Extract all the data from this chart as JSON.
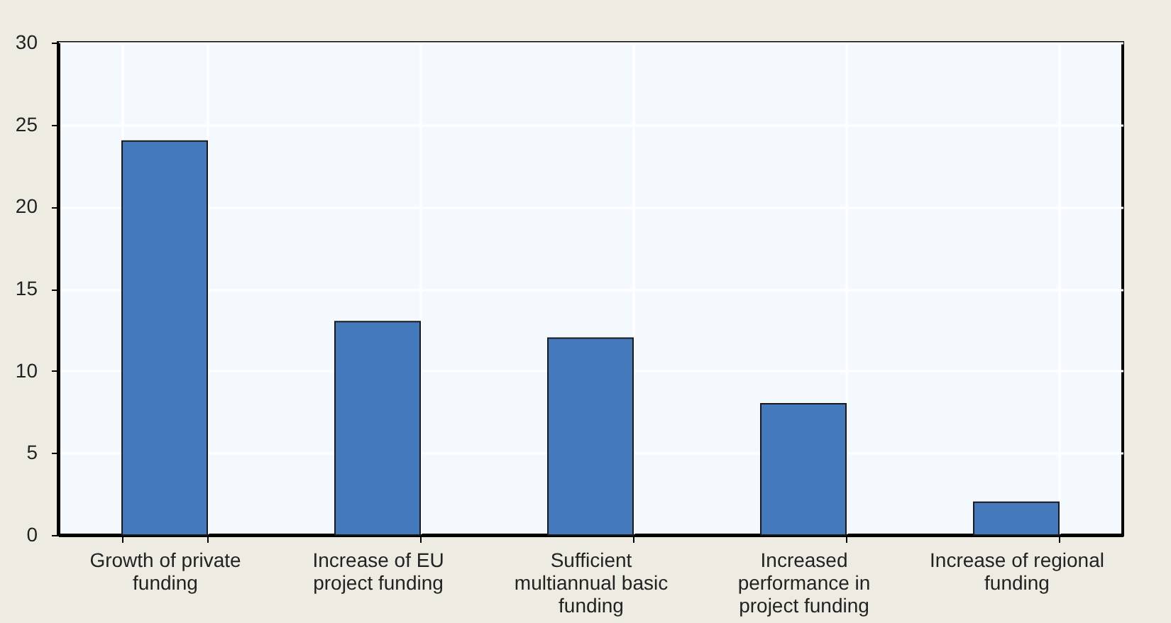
{
  "chart_data": {
    "type": "bar",
    "categories": [
      "Growth of private funding",
      "Increase of EU project funding",
      "Sufficient multiannual basic funding",
      "Increased performance in project funding",
      "Increase of regional funding"
    ],
    "values": [
      24,
      13,
      12,
      8,
      2
    ],
    "color": "#4479bb",
    "ylim": [
      0,
      30
    ],
    "yticks": [
      0,
      5,
      10,
      15,
      20,
      25,
      30
    ],
    "grid": true
  }
}
